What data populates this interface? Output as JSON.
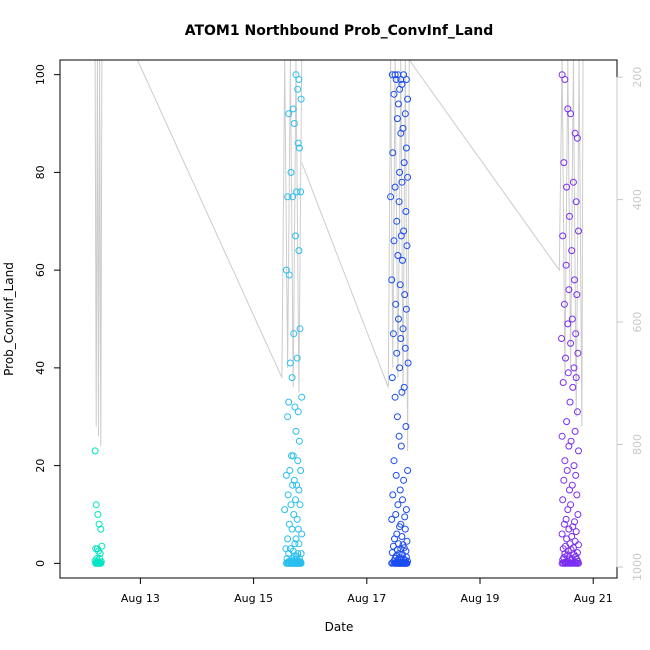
{
  "chart_data": {
    "type": "scatter",
    "title": "ATOM1 Northbound Prob_ConvInf_Land",
    "xlabel": "Date",
    "ylabel": "Prob_ConvInf_Land",
    "x_ticks": [
      "Aug 13",
      "Aug 15",
      "Aug 17",
      "Aug 19",
      "Aug 21"
    ],
    "y_ticks": [
      "0",
      "20",
      "40",
      "60",
      "80",
      "100"
    ],
    "y2_ticks": [
      "200",
      "400",
      "600",
      "800",
      "1000"
    ],
    "x_range_days": [
      11.58,
      21.42
    ],
    "ylim": [
      -3,
      103
    ],
    "y2lim": [
      172,
      1018
    ],
    "y2_reversed": true,
    "grid": false,
    "line_color": "#cccccc",
    "series": [
      {
        "color": "#00e5c3",
        "x": [
          12.2,
          12.22,
          12.25,
          12.27,
          12.3,
          12.21,
          12.24,
          12.26,
          12.29,
          12.32,
          12.23,
          12.28,
          12.2,
          12.25,
          12.31,
          12.22,
          12.27,
          12.24,
          12.29,
          12.21,
          12.26,
          12.3,
          12.23,
          12.28,
          12.25
        ],
        "y": [
          23,
          12,
          10,
          8,
          7,
          3,
          3,
          2.5,
          2,
          3.5,
          1,
          1,
          0.5,
          0.5,
          0.3,
          0.2,
          0.2,
          0,
          0,
          0,
          0,
          0,
          0,
          0,
          0
        ]
      },
      {
        "color": "#29bff0",
        "x": [
          15.75,
          15.8,
          15.62,
          15.78,
          15.72,
          15.84,
          15.7,
          15.79,
          15.81,
          15.66,
          15.83,
          15.6,
          15.76,
          15.69,
          15.74,
          15.8,
          15.58,
          15.63,
          15.82,
          15.71,
          15.77,
          15.65,
          15.68,
          15.85,
          15.62,
          15.73,
          15.79,
          15.6,
          15.75,
          15.81,
          15.67,
          15.7,
          15.78,
          15.64,
          15.83,
          15.58,
          15.72,
          15.76,
          15.69,
          15.8,
          15.61,
          15.74,
          15.66,
          15.82,
          15.55,
          15.71,
          15.77,
          15.63,
          15.79,
          15.68,
          15.85,
          15.6,
          15.75,
          15.73,
          15.8,
          15.57,
          15.65,
          15.7,
          15.78,
          15.62,
          15.84,
          15.72,
          15.76,
          15.59,
          15.81,
          15.68,
          15.74,
          15.64,
          15.79,
          15.71,
          15.83,
          15.66,
          15.77,
          15.6,
          15.75,
          15.69,
          15.82,
          15.62,
          15.73,
          15.8,
          15.58,
          15.76,
          15.7,
          15.67,
          15.78,
          15.64,
          15.84,
          15.72,
          15.61,
          15.79,
          15.69,
          15.75,
          15.81,
          15.63,
          15.74,
          15.71,
          15.66,
          15.77,
          15.83,
          15.6
        ],
        "y": [
          100,
          99,
          92,
          97,
          90,
          95,
          93,
          86,
          85,
          80,
          76,
          75,
          76,
          75,
          67,
          64,
          60,
          59,
          48,
          47,
          42,
          41,
          38,
          34,
          33,
          32,
          31,
          30,
          27,
          25,
          22,
          22,
          21,
          19,
          19,
          18,
          17,
          16,
          16,
          15,
          14,
          13,
          12,
          12,
          11,
          10,
          9,
          8,
          7,
          7,
          6,
          5,
          5,
          4,
          4,
          3,
          3,
          2.5,
          2,
          2,
          2,
          1.5,
          1.5,
          1,
          1,
          1,
          0.8,
          0.5,
          0.5,
          0.5,
          0.3,
          0.3,
          0.2,
          0.2,
          0.1,
          0.1,
          0,
          0,
          0,
          0,
          0,
          0,
          0,
          0,
          0,
          0,
          0,
          0,
          0,
          0,
          0,
          0,
          0,
          0,
          0,
          0,
          0,
          0,
          0,
          0
        ]
      },
      {
        "color": "#1a4cf0",
        "x": [
          17.45,
          17.5,
          17.55,
          17.6,
          17.65,
          17.7,
          17.52,
          17.62,
          17.58,
          17.72,
          17.48,
          17.56,
          17.68,
          17.54,
          17.64,
          17.6,
          17.7,
          17.46,
          17.66,
          17.58,
          17.72,
          17.5,
          17.62,
          17.42,
          17.57,
          17.69,
          17.53,
          17.65,
          17.61,
          17.48,
          17.71,
          17.55,
          17.63,
          17.44,
          17.59,
          17.67,
          17.51,
          17.7,
          17.56,
          17.64,
          17.47,
          17.6,
          17.68,
          17.53,
          17.73,
          17.58,
          17.45,
          17.66,
          17.62,
          17.5,
          17.54,
          17.69,
          17.57,
          17.61,
          17.48,
          17.72,
          17.52,
          17.65,
          17.59,
          17.46,
          17.63,
          17.55,
          17.7,
          17.51,
          17.67,
          17.44,
          17.6,
          17.58,
          17.68,
          17.53,
          17.62,
          17.49,
          17.71,
          17.56,
          17.64,
          17.47,
          17.66,
          17.6,
          17.54,
          17.69,
          17.45,
          17.57,
          17.63,
          17.52,
          17.7,
          17.58,
          17.5,
          17.65,
          17.61,
          17.55,
          17.68,
          17.48,
          17.72,
          17.59,
          17.53,
          17.66,
          17.62,
          17.46,
          17.56,
          17.64,
          17.51,
          17.69,
          17.57,
          17.6,
          17.67,
          17.54,
          17.71,
          17.49,
          17.63,
          17.58,
          17.52,
          17.65,
          17.44,
          17.61,
          17.7,
          17.55,
          17.68,
          17.59,
          17.5,
          17.66
        ],
        "y": [
          100,
          100,
          100,
          99,
          100,
          99,
          99,
          98,
          97,
          95,
          96,
          94,
          92,
          91,
          89,
          88,
          85,
          84,
          82,
          80,
          79,
          77,
          78,
          75,
          74,
          72,
          70,
          68,
          67,
          66,
          65,
          63,
          62,
          58,
          57,
          55,
          53,
          52,
          50,
          48,
          47,
          46,
          44,
          43,
          41,
          40,
          38,
          36,
          35,
          34,
          30,
          28,
          26,
          24,
          21,
          19,
          18,
          17,
          15,
          14,
          13,
          12,
          11,
          10,
          9.5,
          9,
          8,
          7.5,
          7,
          6,
          5.5,
          5,
          4.5,
          4,
          3.8,
          3.5,
          3.2,
          3,
          2.8,
          2.5,
          2.2,
          2,
          1.8,
          1.5,
          1.3,
          1.2,
          1,
          0.9,
          0.8,
          0.7,
          0.6,
          0.5,
          0.4,
          0.3,
          0.3,
          0.2,
          0.2,
          0.1,
          0.1,
          0,
          0,
          0,
          0,
          0,
          0,
          0,
          0,
          0,
          0,
          0,
          0,
          0,
          0,
          0,
          0,
          0,
          0,
          0,
          0,
          0
        ]
      },
      {
        "color": "#7b2ef0",
        "x": [
          20.45,
          20.5,
          20.55,
          20.6,
          20.68,
          20.72,
          20.48,
          20.65,
          20.53,
          20.7,
          20.58,
          20.74,
          20.46,
          20.62,
          20.52,
          20.67,
          20.57,
          20.71,
          20.49,
          20.63,
          20.55,
          20.69,
          20.44,
          20.6,
          20.73,
          20.51,
          20.66,
          20.56,
          20.7,
          20.47,
          20.64,
          20.59,
          20.72,
          20.53,
          20.68,
          20.45,
          20.61,
          20.57,
          20.74,
          20.5,
          20.66,
          20.54,
          20.69,
          20.48,
          20.63,
          20.58,
          20.71,
          20.46,
          20.6,
          20.55,
          20.73,
          20.52,
          20.67,
          20.49,
          20.64,
          20.57,
          20.7,
          20.45,
          20.62,
          20.53,
          20.68,
          20.59,
          20.74,
          20.51,
          20.65,
          20.47,
          20.61,
          20.56,
          20.72,
          20.5,
          20.66,
          20.54,
          20.69,
          20.48,
          20.63,
          20.58,
          20.71,
          20.46,
          20.6,
          20.55,
          20.73,
          20.52,
          20.67,
          20.49,
          20.64,
          20.57,
          20.7,
          20.45,
          20.62,
          20.53,
          20.68,
          20.59,
          20.74,
          20.51,
          20.65,
          20.47,
          20.61,
          20.56,
          20.72,
          20.5
        ],
        "y": [
          100,
          99,
          93,
          92,
          88,
          87,
          82,
          78,
          77,
          74,
          71,
          68,
          67,
          64,
          61,
          58,
          56,
          55,
          53,
          50,
          49,
          47,
          46,
          45,
          43,
          42,
          40,
          39,
          38,
          37,
          36,
          33,
          31,
          29,
          27,
          26,
          25,
          24,
          23,
          21,
          20,
          19,
          18,
          17,
          16,
          15,
          14,
          13,
          12,
          11,
          10,
          9,
          8.5,
          8,
          7.5,
          7,
          6.5,
          6,
          5.5,
          5,
          4.5,
          4,
          3.8,
          3.5,
          3.2,
          3,
          2.8,
          2.5,
          2.2,
          2,
          1.8,
          1.6,
          1.4,
          1.2,
          1,
          0.9,
          0.8,
          0.7,
          0.6,
          0.5,
          0.4,
          0.3,
          0.2,
          0.2,
          0.1,
          0.1,
          0,
          0,
          0,
          0,
          0,
          0,
          0,
          0,
          0,
          0,
          0,
          0,
          0,
          0
        ]
      }
    ],
    "line_segments": [
      [
        [
          12.2,
          103
        ],
        [
          12.22,
          28
        ],
        [
          12.24,
          103
        ],
        [
          12.26,
          26
        ],
        [
          12.28,
          103
        ],
        [
          12.3,
          24
        ],
        [
          12.32,
          103
        ]
      ],
      [
        [
          12.95,
          103
        ],
        [
          15.5,
          38
        ],
        [
          15.55,
          103
        ],
        [
          15.6,
          40
        ],
        [
          15.65,
          103
        ],
        [
          15.7,
          36
        ],
        [
          15.75,
          103
        ],
        [
          15.8,
          35
        ],
        [
          15.85,
          103
        ]
      ],
      [
        [
          15.85,
          82
        ],
        [
          17.38,
          36
        ],
        [
          17.42,
          103
        ],
        [
          17.46,
          40
        ],
        [
          17.5,
          103
        ],
        [
          17.55,
          38
        ],
        [
          17.6,
          103
        ],
        [
          17.64,
          34
        ],
        [
          17.68,
          103
        ],
        [
          17.72,
          23
        ],
        [
          17.75,
          103
        ]
      ],
      [
        [
          17.75,
          103
        ],
        [
          20.4,
          60
        ],
        [
          20.45,
          103
        ],
        [
          20.5,
          38
        ],
        [
          20.55,
          103
        ],
        [
          20.6,
          40
        ],
        [
          20.65,
          103
        ],
        [
          20.7,
          30
        ],
        [
          20.75,
          103
        ],
        [
          20.8,
          28
        ],
        [
          20.82,
          103
        ]
      ]
    ]
  }
}
